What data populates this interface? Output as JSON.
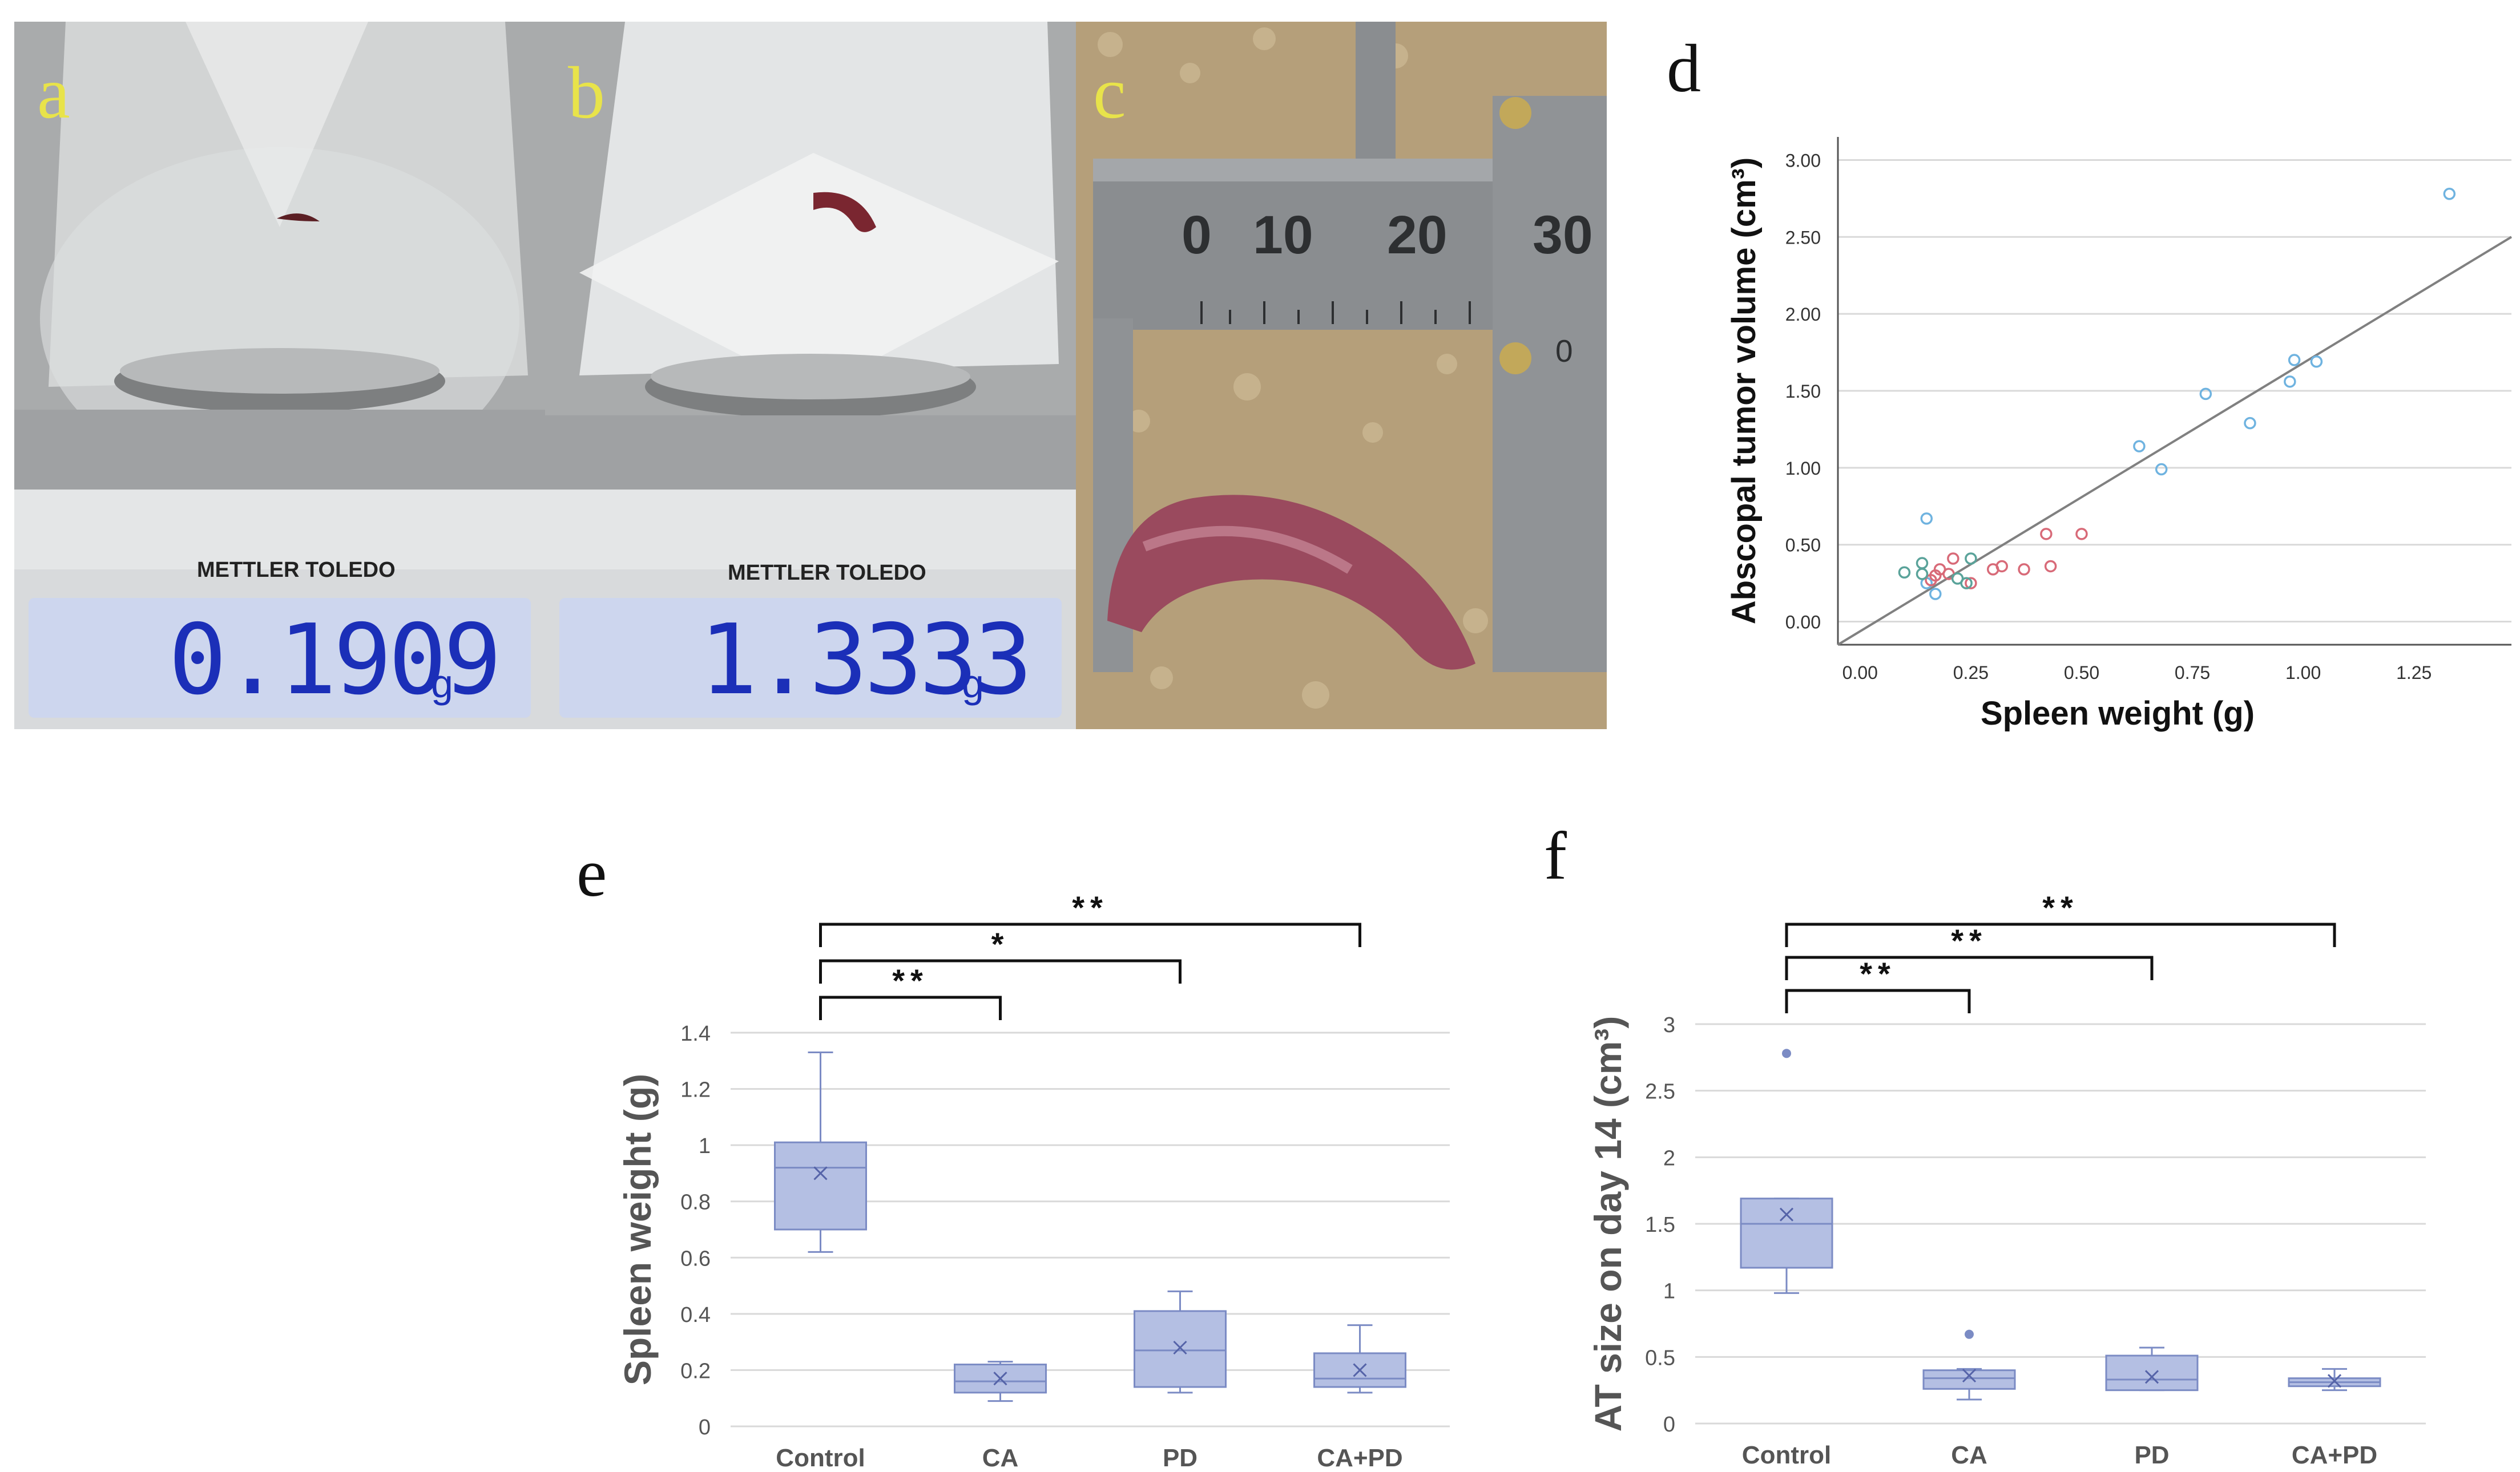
{
  "panels": {
    "a": {
      "label": "a",
      "brand": "METTLER TOLEDO",
      "reading": "0.1909",
      "unit": "g"
    },
    "b": {
      "label": "b",
      "brand": "METTLER TOLEDO",
      "reading": "1.3333",
      "unit": "g"
    },
    "c": {
      "label": "c",
      "caliper_ticks": [
        "0",
        "10",
        "20",
        "30"
      ],
      "vernier_zero": "0"
    },
    "d": {
      "label": "d"
    },
    "e": {
      "label": "e"
    },
    "f": {
      "label": "f"
    }
  },
  "colors": {
    "box_fill": "#b4bfe3",
    "box_stroke": "#7b8bc4",
    "grid": "#d9d9d9",
    "fit_line": "#808080",
    "group_blue": "#6fb3e0",
    "group_red": "#d86a78",
    "group_teal": "#5aa39a",
    "group_gray": "#9aa3ad"
  },
  "chart_data": [
    {
      "id": "d",
      "type": "scatter",
      "xlabel": "Spleen weight (g)",
      "ylabel": "Abscopal tumor volume (cm³)",
      "xlim": [
        -0.05,
        1.47
      ],
      "ylim": [
        -0.15,
        3.15
      ],
      "xticks": [
        "0.00",
        "0.25",
        "0.50",
        "0.75",
        "1.00",
        "1.25"
      ],
      "yticks": [
        "0.00",
        "0.50",
        "1.00",
        "1.50",
        "2.00",
        "2.50",
        "3.00"
      ],
      "grid": true,
      "fit_line": {
        "x": [
          -0.05,
          1.47
        ],
        "y": [
          -0.15,
          2.5
        ]
      },
      "series": [
        {
          "color": "blue",
          "points": [
            [
              1.33,
              2.78
            ],
            [
              0.98,
              1.7
            ],
            [
              1.03,
              1.69
            ],
            [
              0.97,
              1.56
            ],
            [
              0.78,
              1.48
            ],
            [
              0.88,
              1.29
            ],
            [
              0.63,
              1.14
            ],
            [
              0.68,
              0.99
            ],
            [
              0.15,
              0.67
            ],
            [
              0.17,
              0.18
            ],
            [
              0.15,
              0.25
            ]
          ]
        },
        {
          "color": "red",
          "points": [
            [
              0.42,
              0.57
            ],
            [
              0.5,
              0.57
            ],
            [
              0.21,
              0.41
            ],
            [
              0.32,
              0.36
            ],
            [
              0.43,
              0.36
            ],
            [
              0.37,
              0.34
            ],
            [
              0.3,
              0.34
            ],
            [
              0.2,
              0.31
            ],
            [
              0.17,
              0.3
            ],
            [
              0.16,
              0.27
            ],
            [
              0.18,
              0.34
            ],
            [
              0.25,
              0.25
            ]
          ]
        },
        {
          "color": "teal",
          "points": [
            [
              0.14,
              0.38
            ],
            [
              0.25,
              0.41
            ],
            [
              0.1,
              0.32
            ],
            [
              0.14,
              0.31
            ],
            [
              0.22,
              0.28
            ],
            [
              0.24,
              0.25
            ]
          ]
        }
      ]
    },
    {
      "id": "e",
      "type": "box",
      "ylabel": "Spleen weight (g)",
      "categories": [
        "Control",
        "CA",
        "PD",
        "CA+PD"
      ],
      "yticks": [
        "0",
        "0.2",
        "0.4",
        "0.6",
        "0.8",
        "1",
        "1.2",
        "1.4"
      ],
      "ylim": [
        0,
        1.4
      ],
      "boxes": [
        {
          "min": 0.62,
          "q1": 0.7,
          "median": 0.92,
          "q3": 1.01,
          "max": 1.33,
          "mean": 0.9
        },
        {
          "min": 0.09,
          "q1": 0.12,
          "median": 0.16,
          "q3": 0.22,
          "max": 0.23,
          "mean": 0.17
        },
        {
          "min": 0.12,
          "q1": 0.14,
          "median": 0.27,
          "q3": 0.41,
          "max": 0.48,
          "mean": 0.28
        },
        {
          "min": 0.12,
          "q1": 0.14,
          "median": 0.17,
          "q3": 0.26,
          "max": 0.36,
          "mean": 0.2
        }
      ],
      "outliers": [],
      "significance": [
        {
          "from": "Control",
          "to": "CA",
          "label": "**"
        },
        {
          "from": "Control",
          "to": "PD",
          "label": "*"
        },
        {
          "from": "Control",
          "to": "CA+PD",
          "label": "**"
        }
      ]
    },
    {
      "id": "f",
      "type": "box",
      "ylabel": "AT size on day 14 (cm³)",
      "categories": [
        "Control",
        "CA",
        "PD",
        "CA+PD"
      ],
      "yticks": [
        "0",
        "0.5",
        "1",
        "1.5",
        "2",
        "2.5",
        "3"
      ],
      "ylim": [
        0,
        3
      ],
      "boxes": [
        {
          "min": 0.98,
          "q1": 1.17,
          "median": 1.5,
          "q3": 1.69,
          "max": 1.69,
          "mean": 1.57
        },
        {
          "min": 0.18,
          "q1": 0.26,
          "median": 0.34,
          "q3": 0.4,
          "max": 0.41,
          "mean": 0.36
        },
        {
          "min": 0.25,
          "q1": 0.25,
          "median": 0.33,
          "q3": 0.51,
          "max": 0.57,
          "mean": 0.35
        },
        {
          "min": 0.25,
          "q1": 0.28,
          "median": 0.31,
          "q3": 0.34,
          "max": 0.41,
          "mean": 0.32
        }
      ],
      "outliers": [
        {
          "category": "Control",
          "value": 2.78
        },
        {
          "category": "CA",
          "value": 0.67
        }
      ],
      "significance": [
        {
          "from": "Control",
          "to": "CA",
          "label": "**"
        },
        {
          "from": "Control",
          "to": "PD",
          "label": "**"
        },
        {
          "from": "Control",
          "to": "CA+PD",
          "label": "**"
        }
      ]
    }
  ]
}
